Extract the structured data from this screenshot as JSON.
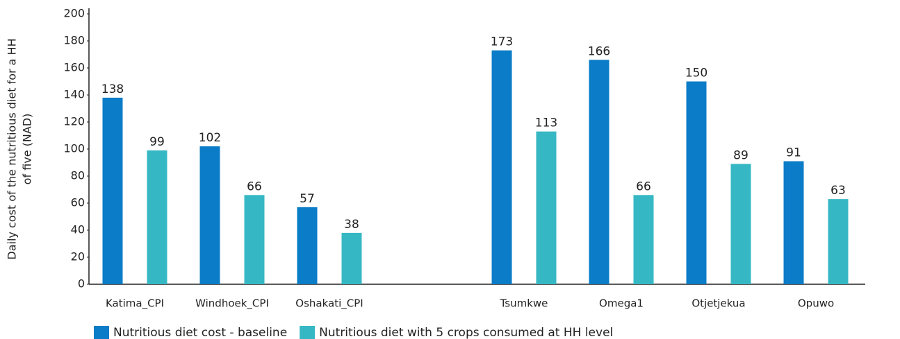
{
  "chart_data": {
    "type": "bar",
    "ylabel": [
      "Daily cost of the nutritious diet for a HH",
      "of five (NAD)"
    ],
    "categories": [
      "Katima_CPI",
      "Windhoek_CPI",
      "Oshakati_CPI",
      null,
      "Tsumkwe",
      "Omega1",
      "Otjetjekua",
      "Opuwo"
    ],
    "series": [
      {
        "name": "Nutritious diet cost - baseline",
        "color": "#0a7cc8",
        "values": [
          138,
          102,
          57,
          null,
          173,
          166,
          150,
          91
        ]
      },
      {
        "name": "Nutritious diet with 5 crops consumed at HH level",
        "color": "#36b8c4",
        "values": [
          99,
          66,
          38,
          null,
          113,
          66,
          89,
          63
        ]
      }
    ],
    "ylim": [
      0,
      200
    ],
    "yticks": [
      0,
      20,
      40,
      60,
      80,
      100,
      120,
      140,
      160,
      180,
      200
    ],
    "grid": false,
    "legend": "bottom"
  }
}
